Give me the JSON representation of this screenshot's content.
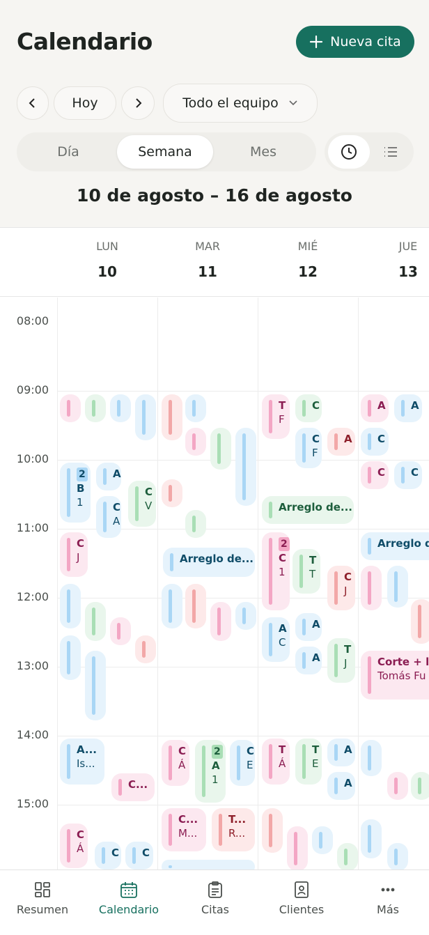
{
  "header": {
    "title": "Calendario",
    "new_button": "Nueva cita",
    "today": "Hoy",
    "team": "Todo el equipo",
    "views": [
      "Día",
      "Semana",
      "Mes"
    ],
    "range": "10 de agosto – 16 de agosto"
  },
  "days": [
    {
      "name": "LUN",
      "num": "10"
    },
    {
      "name": "MAR",
      "num": "11"
    },
    {
      "name": "MIÉ",
      "num": "12"
    },
    {
      "name": "JUE",
      "num": "13"
    }
  ],
  "times": [
    "08:00",
    "09:00",
    "10:00",
    "11:00",
    "12:00",
    "13:00",
    "14:00",
    "15:00"
  ],
  "events": [
    {
      "badge": "2",
      "lines": [
        "B",
        "1"
      ]
    },
    {
      "lines": [
        "A"
      ]
    },
    {
      "lines": [
        "C",
        "A"
      ]
    },
    {
      "lines": [
        "C",
        "V"
      ]
    },
    {
      "lines": [
        "C",
        "J"
      ]
    },
    {
      "lines": [
        "A...",
        "Is..."
      ]
    },
    {
      "lines": [
        "C..."
      ]
    },
    {
      "lines": [
        "C",
        "Á"
      ]
    },
    {
      "lines": [
        "C"
      ]
    },
    {
      "lines": [
        "C"
      ]
    },
    {
      "lines": [
        "Arreglo de..."
      ]
    },
    {
      "lines": [
        "C",
        "Á"
      ]
    },
    {
      "badge": "2",
      "lines": [
        "A",
        "1"
      ]
    },
    {
      "lines": [
        "C",
        "E"
      ]
    },
    {
      "lines": [
        "C...",
        "M..."
      ]
    },
    {
      "lines": [
        "T...",
        "R..."
      ]
    },
    {
      "lines": [
        "T",
        "F"
      ]
    },
    {
      "lines": [
        "C"
      ]
    },
    {
      "lines": [
        "C",
        "F"
      ]
    },
    {
      "lines": [
        "A"
      ]
    },
    {
      "lines": [
        "Arreglo de..."
      ]
    },
    {
      "badge": "2",
      "lines": [
        "C",
        "1"
      ]
    },
    {
      "lines": [
        "T",
        "T"
      ]
    },
    {
      "lines": [
        "C",
        "J"
      ]
    },
    {
      "lines": [
        "A",
        "C"
      ]
    },
    {
      "lines": [
        "A"
      ]
    },
    {
      "lines": [
        "A"
      ]
    },
    {
      "lines": [
        "T",
        "J"
      ]
    },
    {
      "lines": [
        "T",
        "Á"
      ]
    },
    {
      "lines": [
        "T",
        "E"
      ]
    },
    {
      "lines": [
        "A"
      ]
    },
    {
      "lines": [
        "A"
      ]
    },
    {
      "lines": [
        "A"
      ]
    },
    {
      "lines": [
        "A"
      ]
    },
    {
      "lines": [
        "C"
      ]
    },
    {
      "lines": [
        "C"
      ]
    },
    {
      "lines": [
        "C"
      ]
    },
    {
      "lines": [
        "Arreglo d"
      ]
    },
    {
      "lines": [
        "Corte + la",
        "Tomás Fu"
      ]
    }
  ],
  "nav": [
    "Resumen",
    "Calendario",
    "Citas",
    "Clientes",
    "Más"
  ]
}
